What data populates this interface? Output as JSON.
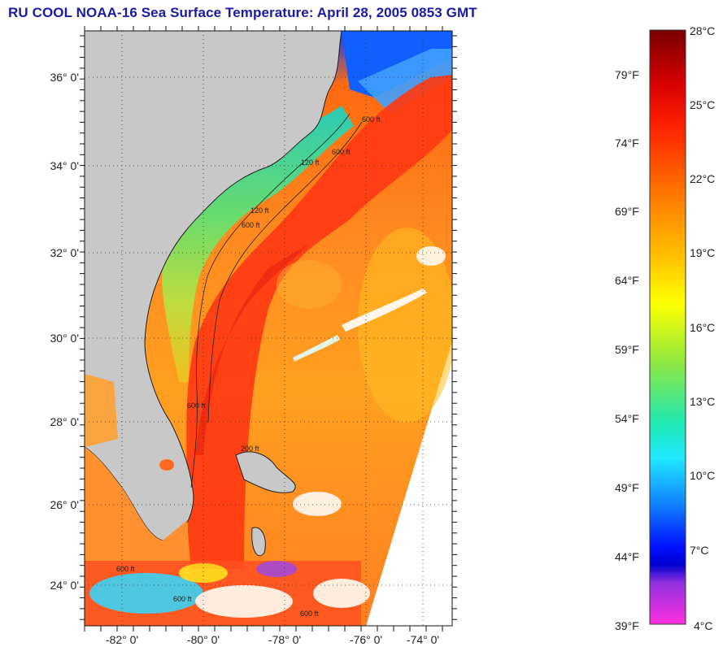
{
  "title": "RU COOL  NOAA-16  Sea Surface Temperature:  April 28, 2005 0853 GMT",
  "map": {
    "lat_labels": [
      "36° 0'",
      "34° 0'",
      "32° 0'",
      "30° 0'",
      "28° 0'",
      "26° 0'",
      "24° 0'"
    ],
    "lon_labels": [
      "-82° 0'",
      "-80° 0'",
      "-78° 0'",
      "-76° 0'",
      "-74° 0'"
    ],
    "isobath_labels": [
      "600 ft",
      "120 ft",
      "600 ft",
      "120 ft",
      "600 ft",
      "600 ft",
      "200 ft",
      "600 ft",
      "600 ft",
      "600 ft"
    ]
  },
  "colorbar": {
    "celsius_labels": [
      "28°C",
      "25°C",
      "22°C",
      "19°C",
      "16°C",
      "13°C",
      "10°C",
      "7°C",
      "4°C"
    ],
    "fahrenheit_labels": [
      "79°F",
      "74°F",
      "69°F",
      "64°F",
      "59°F",
      "54°F",
      "49°F",
      "44°F",
      "39°F"
    ]
  },
  "colors": {
    "title": "#1a1aa8",
    "land": "#c8c8c8",
    "warm_core": "#ff3a10",
    "shelf_green": "#7ee060",
    "cold_north": "#0a40ff"
  }
}
